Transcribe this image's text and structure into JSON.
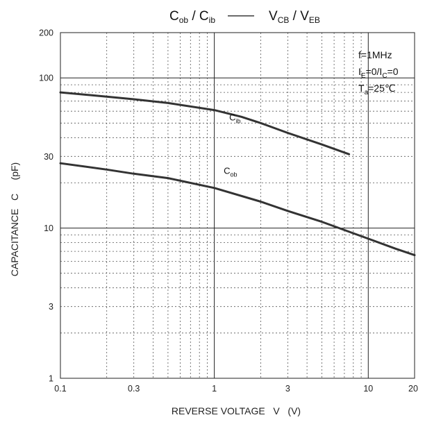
{
  "chart_data": {
    "type": "line",
    "title": {
      "left": [
        {
          "t": "C"
        },
        {
          "t": "ob",
          "sub": true
        },
        {
          "t": " / C"
        },
        {
          "t": "ib",
          "sub": true
        }
      ],
      "dash": "——",
      "right": [
        {
          "t": "V"
        },
        {
          "t": "CB",
          "sub": true
        },
        {
          "t": " / V"
        },
        {
          "t": "EB",
          "sub": true
        }
      ]
    },
    "xlabel": "REVERSE VOLTAGE   V   (V)",
    "ylabel": "CAPACITANCE   C     (pF)",
    "x_scale": "log",
    "y_scale": "log",
    "xlim": [
      0.1,
      20
    ],
    "ylim": [
      1,
      200
    ],
    "grid": true,
    "x_ticks": [
      {
        "v": 0.1,
        "label": "0.1"
      },
      {
        "v": 0.3,
        "label": "0.3"
      },
      {
        "v": 1,
        "label": "1"
      },
      {
        "v": 3,
        "label": "3"
      },
      {
        "v": 10,
        "label": "10"
      },
      {
        "v": 20,
        "label": "20"
      }
    ],
    "y_ticks": [
      {
        "v": 1,
        "label": "1"
      },
      {
        "v": 3,
        "label": "3"
      },
      {
        "v": 10,
        "label": "10"
      },
      {
        "v": 30,
        "label": "30"
      },
      {
        "v": 100,
        "label": "100"
      },
      {
        "v": 200,
        "label": "200"
      }
    ],
    "conditions": [
      [
        {
          "t": "f=1MHz"
        }
      ],
      [
        {
          "t": "I"
        },
        {
          "t": "E",
          "sub": true
        },
        {
          "t": "=0/I"
        },
        {
          "t": "C",
          "sub": true
        },
        {
          "t": "=0"
        }
      ],
      [
        {
          "t": "T"
        },
        {
          "t": "a",
          "sub": true
        },
        {
          "t": "=25℃"
        }
      ]
    ],
    "series": [
      {
        "name": "Cib",
        "label": [
          {
            "t": "C"
          },
          {
            "t": "ib",
            "sub": true
          }
        ],
        "label_at": [
          1.25,
          52
        ],
        "x": [
          0.1,
          0.2,
          0.3,
          0.5,
          1,
          1.5,
          2,
          3,
          5,
          7.5
        ],
        "y": [
          80,
          75,
          72,
          68,
          61,
          55,
          50,
          43,
          36,
          31
        ]
      },
      {
        "name": "Cob",
        "label": [
          {
            "t": "C"
          },
          {
            "t": "ob",
            "sub": true
          }
        ],
        "label_at": [
          1.15,
          23
        ],
        "x": [
          0.1,
          0.2,
          0.3,
          0.5,
          1,
          2,
          3,
          5,
          7,
          10,
          15,
          20
        ],
        "y": [
          27,
          24.5,
          23,
          21.5,
          18.5,
          15,
          13,
          11,
          9.7,
          8.5,
          7.3,
          6.6
        ]
      }
    ]
  }
}
